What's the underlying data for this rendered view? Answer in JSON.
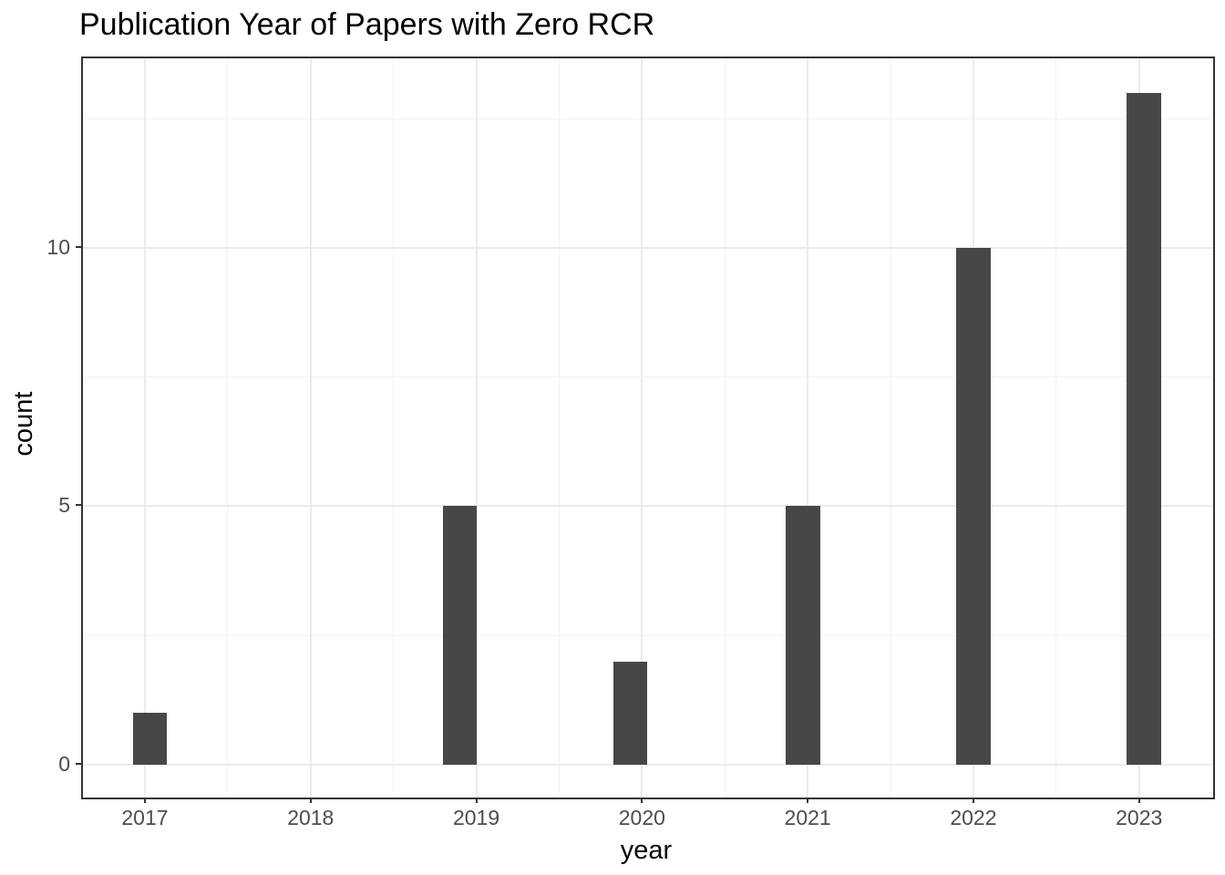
{
  "chart_data": {
    "type": "bar",
    "title": "Publication Year of Papers with Zero RCR",
    "xlabel": "year",
    "ylabel": "count",
    "categories": [
      "2017",
      "2018",
      "2019",
      "2020",
      "2021",
      "2022",
      "2023"
    ],
    "values": [
      1,
      0,
      5,
      2,
      5,
      10,
      13
    ],
    "x_ticks": [
      2017,
      2018,
      2019,
      2020,
      2021,
      2022,
      2023
    ],
    "y_ticks": [
      0,
      5,
      10
    ],
    "xlim": [
      2016.626,
      2023.447
    ],
    "ylim": [
      -0.635,
      13.668
    ],
    "bars": [
      {
        "x": 2017.03,
        "count": 1
      },
      {
        "x": 2018.9,
        "count": 5
      },
      {
        "x": 2019.93,
        "count": 2
      },
      {
        "x": 2020.97,
        "count": 5
      },
      {
        "x": 2022.0,
        "count": 10
      },
      {
        "x": 2023.03,
        "count": 13
      }
    ],
    "bar_width": 0.207,
    "grid": "on",
    "legend": "none",
    "colors": {
      "bar": "#474747",
      "grid_major": "#EBEBEB",
      "grid_minor": "#F2F2F2",
      "panel_border": "#333333",
      "tick": "#333333",
      "tick_label": "#4D4D4D",
      "text": "#000000",
      "background": "#FFFFFF"
    }
  }
}
